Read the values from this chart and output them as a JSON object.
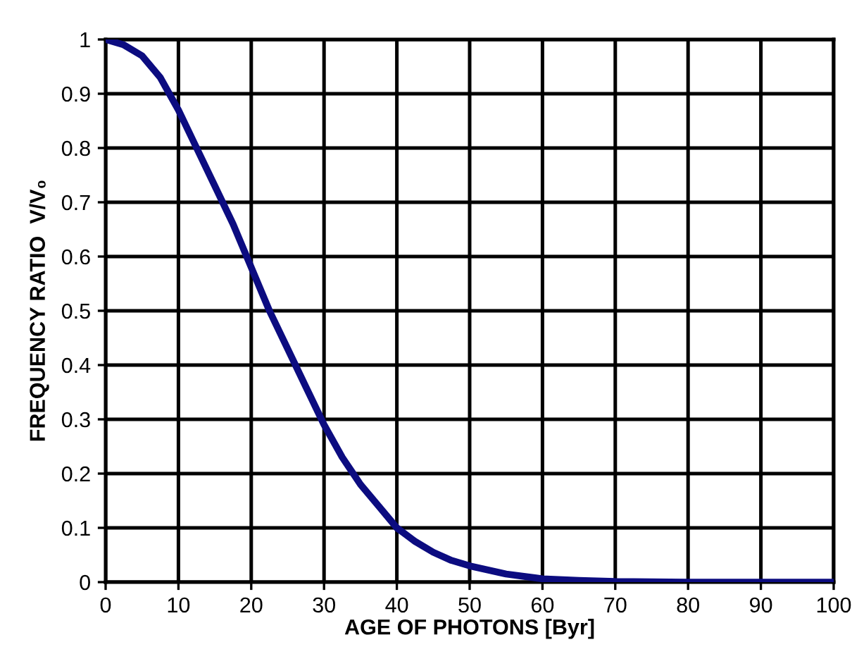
{
  "chart_data": {
    "type": "line",
    "xlabel": "AGE OF PHOTONS [Byr]",
    "ylabel": "FREQUENCY RATIO  V/V₀",
    "x": [
      0,
      2.5,
      5,
      7.5,
      10,
      12.5,
      15,
      17.5,
      20,
      22.5,
      25,
      27.5,
      30,
      32.5,
      35,
      37.5,
      40,
      42.5,
      45,
      47.5,
      50,
      55,
      60,
      65,
      70,
      80,
      90,
      100
    ],
    "series": [
      {
        "color": "#0c0c80",
        "values": [
          1,
          0.99,
          0.97,
          0.93,
          0.87,
          0.8,
          0.73,
          0.66,
          0.58,
          0.5,
          0.43,
          0.36,
          0.29,
          0.23,
          0.18,
          0.14,
          0.1,
          0.075,
          0.055,
          0.04,
          0.03,
          0.015,
          0.006,
          0.003,
          0.001,
          0,
          0,
          0
        ]
      }
    ],
    "xlim": [
      0,
      100
    ],
    "ylim": [
      0,
      1
    ],
    "xticks": [
      0,
      10,
      20,
      30,
      40,
      50,
      60,
      70,
      80,
      90,
      100
    ],
    "yticks": [
      0,
      0.1,
      0.2,
      0.3,
      0.4,
      0.5,
      0.6,
      0.7,
      0.8,
      0.9,
      1
    ],
    "grid": true,
    "marker": "none",
    "line_style": "solid"
  }
}
